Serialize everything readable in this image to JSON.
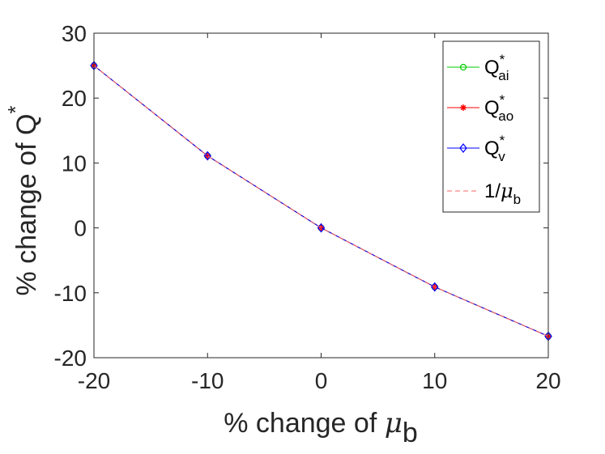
{
  "chart_data": {
    "type": "line",
    "xlabel_prefix": "% change of ",
    "xlabel_symbol": "μ",
    "xlabel_sub": "b",
    "ylabel_prefix": "% change of Q",
    "ylabel_sup": "*",
    "xlim": [
      -20,
      20
    ],
    "ylim": [
      -20,
      30
    ],
    "xticks": [
      "-20",
      "-10",
      "0",
      "10",
      "20"
    ],
    "yticks": [
      "-20",
      "-10",
      "0",
      "10",
      "20",
      "30"
    ],
    "grid": false,
    "legend_position": "top-right",
    "x": [
      -20,
      -10,
      0,
      10,
      20
    ],
    "series": [
      {
        "name": "Q*ai",
        "legend": {
          "base": "Q",
          "sup": "*",
          "sub": "ai"
        },
        "color": "#00cc00",
        "marker": "circle",
        "line": "solid",
        "values": [
          25.0,
          11.1,
          0.0,
          -9.1,
          -16.7
        ]
      },
      {
        "name": "Q*ao",
        "legend": {
          "base": "Q",
          "sup": "*",
          "sub": "ao"
        },
        "color": "#ff0000",
        "marker": "asterisk",
        "line": "solid",
        "values": [
          25.0,
          11.1,
          0.0,
          -9.1,
          -16.7
        ]
      },
      {
        "name": "Q*v",
        "legend": {
          "base": "Q",
          "sup": "*",
          "sub": "v"
        },
        "color": "#0000ff",
        "marker": "diamond",
        "line": "solid",
        "values": [
          25.0,
          11.1,
          0.0,
          -9.1,
          -16.7
        ]
      },
      {
        "name": "1/μb",
        "legend": {
          "base": "1/μ",
          "sup": "",
          "sub": "b"
        },
        "color": "#ff6666",
        "marker": "none",
        "line": "dashed",
        "values": [
          25.0,
          11.1,
          0.0,
          -9.1,
          -16.7
        ]
      }
    ]
  }
}
